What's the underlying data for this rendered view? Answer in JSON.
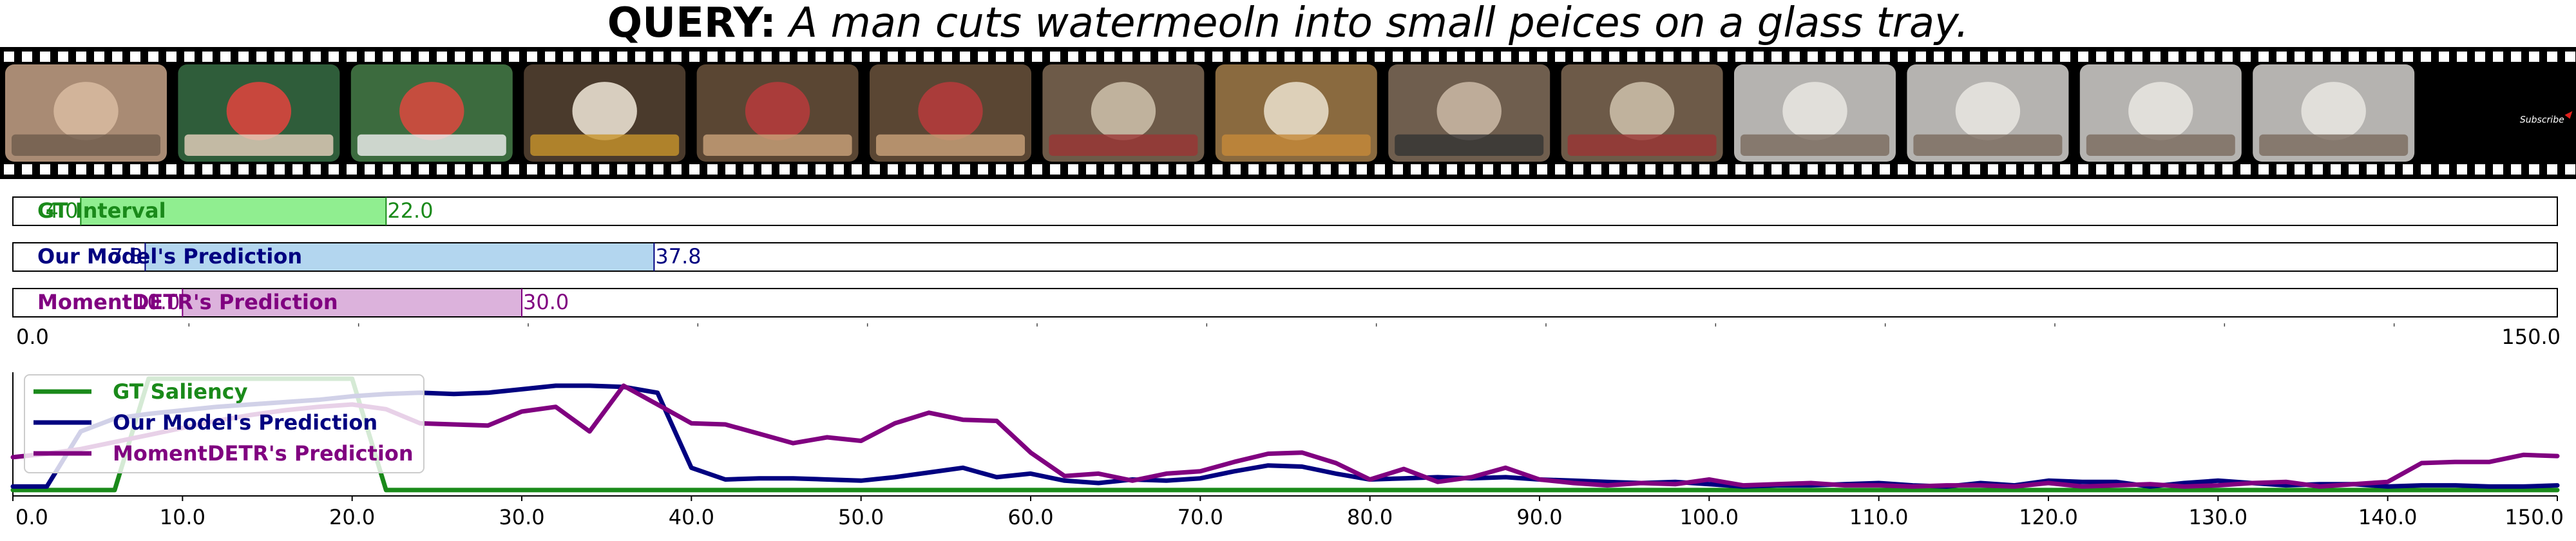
{
  "query": {
    "label": "QUERY:",
    "text": "A man cuts watermeoln into small peices on a glass tray."
  },
  "filmstrip": {
    "frames": [
      {
        "scene": "man-face-closeup"
      },
      {
        "scene": "cutting-watermelon"
      },
      {
        "scene": "watermelon-tray"
      },
      {
        "scene": "bowl-of-noodles"
      },
      {
        "scene": "boy-eating"
      },
      {
        "scene": "boy-eating"
      },
      {
        "scene": "family-on-floor"
      },
      {
        "scene": "plate-of-food"
      },
      {
        "scene": "man-eating"
      },
      {
        "scene": "family-on-floor"
      },
      {
        "scene": "man-talking"
      },
      {
        "scene": "man-talking"
      },
      {
        "scene": "man-talking"
      },
      {
        "scene": "man-talking"
      },
      {
        "scene": "subscribe-end-card",
        "overlay_text": "Subscribe"
      }
    ]
  },
  "colors": {
    "gt": "#1a8a1a",
    "gt_fill": "#90ee90",
    "ours": "#000080",
    "ours_fill": "#b3d6ef",
    "detr": "#800080",
    "detr_fill": "#dcb2dc"
  },
  "chart_data": [
    {
      "type": "interval",
      "xlim": [
        0.0,
        150.0
      ],
      "axis_end_labels": [
        "0.0",
        "150.0"
      ],
      "intervals": [
        {
          "name": "GT Interval",
          "start": 4.0,
          "end": 22.0,
          "start_label": "4.0",
          "end_label": "22.0"
        },
        {
          "name": "Our Model's Prediction",
          "start": 7.8,
          "end": 37.8,
          "start_label": "7.8",
          "end_label": "37.8"
        },
        {
          "name": "MomentDETR's Prediction",
          "start": 10.0,
          "end": 30.0,
          "start_label": "10.0",
          "end_label": "30.0"
        }
      ]
    },
    {
      "type": "line",
      "xlim": [
        0.0,
        150.0
      ],
      "xticks": [
        "0.0",
        "10.0",
        "20.0",
        "30.0",
        "40.0",
        "50.0",
        "60.0",
        "70.0",
        "80.0",
        "90.0",
        "100.0",
        "110.0",
        "120.0",
        "130.0",
        "140.0",
        "150.0"
      ],
      "legend_position": "top-left",
      "x": [
        0,
        2,
        4,
        6,
        8,
        10,
        12,
        14,
        16,
        18,
        20,
        22,
        24,
        26,
        28,
        30,
        32,
        34,
        36,
        38,
        40,
        42,
        44,
        46,
        48,
        50,
        52,
        54,
        56,
        58,
        60,
        62,
        64,
        66,
        68,
        70,
        72,
        74,
        76,
        78,
        80,
        82,
        84,
        86,
        88,
        90,
        92,
        94,
        96,
        98,
        100,
        102,
        104,
        106,
        108,
        110,
        112,
        114,
        116,
        118,
        120,
        122,
        124,
        126,
        128,
        130,
        132,
        134,
        136,
        138,
        140,
        142,
        144,
        146,
        148,
        150
      ],
      "series": [
        {
          "name": "GT Saliency",
          "color_key": "gt",
          "values": [
            0.05,
            0.05,
            0.05,
            0.05,
            1.0,
            1.0,
            1.0,
            1.0,
            1.0,
            1.0,
            1.0,
            0.05,
            0.05,
            0.05,
            0.05,
            0.05,
            0.05,
            0.05,
            0.05,
            0.05,
            0.05,
            0.05,
            0.05,
            0.05,
            0.05,
            0.05,
            0.05,
            0.05,
            0.05,
            0.05,
            0.05,
            0.05,
            0.05,
            0.05,
            0.05,
            0.05,
            0.05,
            0.05,
            0.05,
            0.05,
            0.05,
            0.05,
            0.05,
            0.05,
            0.05,
            0.05,
            0.05,
            0.05,
            0.05,
            0.05,
            0.05,
            0.05,
            0.05,
            0.05,
            0.05,
            0.05,
            0.05,
            0.05,
            0.05,
            0.05,
            0.05,
            0.05,
            0.05,
            0.05,
            0.05,
            0.05,
            0.05,
            0.05,
            0.05,
            0.05,
            0.05,
            0.05,
            0.05,
            0.05,
            0.05,
            0.05
          ]
        },
        {
          "name": "Our Model's Prediction",
          "color_key": "ours",
          "values": [
            0.08,
            0.08,
            0.55,
            0.66,
            0.7,
            0.73,
            0.76,
            0.78,
            0.8,
            0.82,
            0.85,
            0.87,
            0.88,
            0.87,
            0.88,
            0.91,
            0.94,
            0.94,
            0.93,
            0.88,
            0.24,
            0.14,
            0.15,
            0.15,
            0.14,
            0.13,
            0.16,
            0.2,
            0.24,
            0.16,
            0.19,
            0.13,
            0.11,
            0.14,
            0.13,
            0.15,
            0.21,
            0.26,
            0.25,
            0.19,
            0.14,
            0.15,
            0.16,
            0.15,
            0.16,
            0.14,
            0.13,
            0.12,
            0.11,
            0.12,
            0.1,
            0.08,
            0.09,
            0.09,
            0.1,
            0.11,
            0.09,
            0.08,
            0.11,
            0.09,
            0.13,
            0.12,
            0.12,
            0.08,
            0.11,
            0.13,
            0.11,
            0.09,
            0.1,
            0.1,
            0.08,
            0.09,
            0.09,
            0.08,
            0.08,
            0.09
          ]
        },
        {
          "name": "MomentDETR's Prediction",
          "color_key": "detr",
          "values": [
            0.33,
            0.36,
            0.4,
            0.46,
            0.52,
            0.58,
            0.64,
            0.69,
            0.73,
            0.76,
            0.78,
            0.74,
            0.62,
            0.61,
            0.6,
            0.72,
            0.76,
            0.55,
            0.94,
            0.78,
            0.62,
            0.61,
            0.53,
            0.45,
            0.5,
            0.47,
            0.62,
            0.71,
            0.65,
            0.64,
            0.37,
            0.17,
            0.19,
            0.13,
            0.19,
            0.21,
            0.29,
            0.36,
            0.37,
            0.28,
            0.14,
            0.23,
            0.12,
            0.16,
            0.24,
            0.14,
            0.11,
            0.09,
            0.11,
            0.1,
            0.14,
            0.09,
            0.1,
            0.11,
            0.09,
            0.09,
            0.08,
            0.09,
            0.09,
            0.08,
            0.11,
            0.08,
            0.09,
            0.1,
            0.08,
            0.09,
            0.11,
            0.12,
            0.08,
            0.1,
            0.12,
            0.28,
            0.29,
            0.29,
            0.35,
            0.34
          ]
        }
      ]
    }
  ]
}
